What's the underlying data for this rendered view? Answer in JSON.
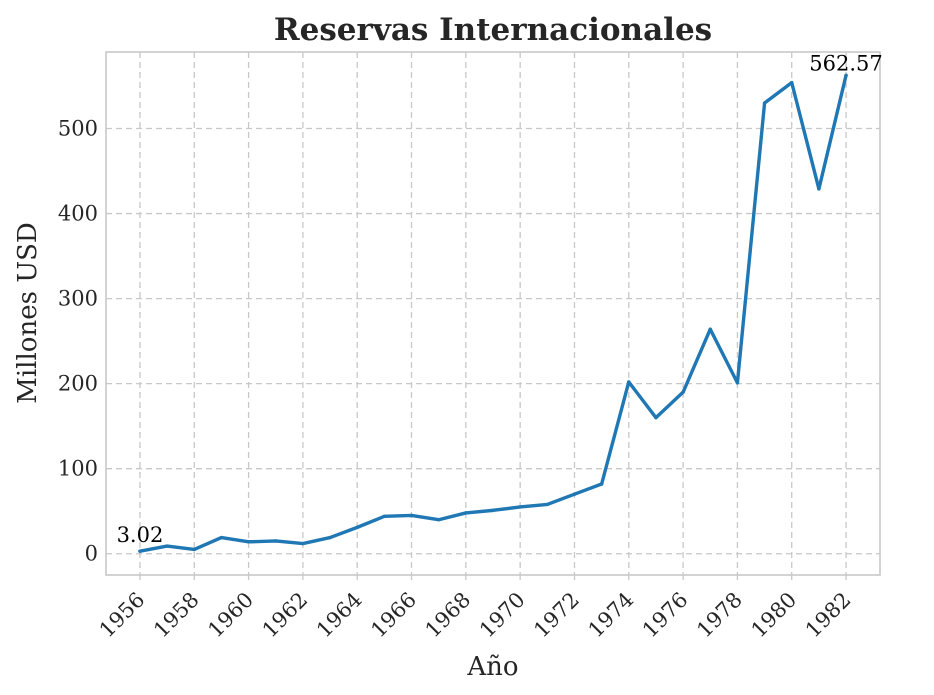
{
  "chart_data": {
    "type": "line",
    "title": "Reservas Internacionales",
    "xlabel": "Año",
    "ylabel": "Millones USD",
    "x": [
      1956,
      1957,
      1958,
      1959,
      1960,
      1961,
      1962,
      1963,
      1964,
      1965,
      1966,
      1967,
      1968,
      1969,
      1970,
      1971,
      1972,
      1973,
      1974,
      1975,
      1976,
      1977,
      1978,
      1979,
      1980,
      1981,
      1982
    ],
    "series": [
      {
        "color": "#1f77b4",
        "values": [
          3.02,
          9,
          5,
          19,
          14,
          15,
          12,
          19,
          31,
          44,
          45,
          40,
          48,
          51,
          55,
          58,
          70,
          82,
          202,
          160,
          190,
          264,
          201,
          530,
          554,
          429,
          562.57
        ]
      }
    ],
    "xticks": [
      "1956",
      "1958",
      "1960",
      "1962",
      "1964",
      "1966",
      "1968",
      "1970",
      "1972",
      "1974",
      "1976",
      "1978",
      "1980",
      "1982"
    ],
    "yticks": [
      "0",
      "100",
      "200",
      "300",
      "400",
      "500"
    ],
    "annotations": [
      "3.02",
      "562.57"
    ],
    "xlim": [
      1954.75,
      1983.25
    ],
    "ylim": [
      -25,
      590
    ],
    "grid": true,
    "grid_style": "dashed"
  }
}
